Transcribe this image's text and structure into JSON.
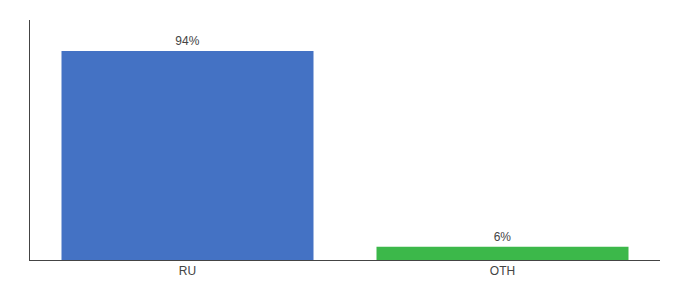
{
  "chart_data": {
    "type": "bar",
    "categories": [
      "RU",
      "OTH"
    ],
    "values": [
      94,
      6
    ],
    "value_labels": [
      "94%",
      "6%"
    ],
    "colors": [
      "#4472c4",
      "#3cb84a"
    ],
    "ylim": [
      0,
      108
    ],
    "grid": false,
    "data_labels": true,
    "tick_labels": "x"
  }
}
